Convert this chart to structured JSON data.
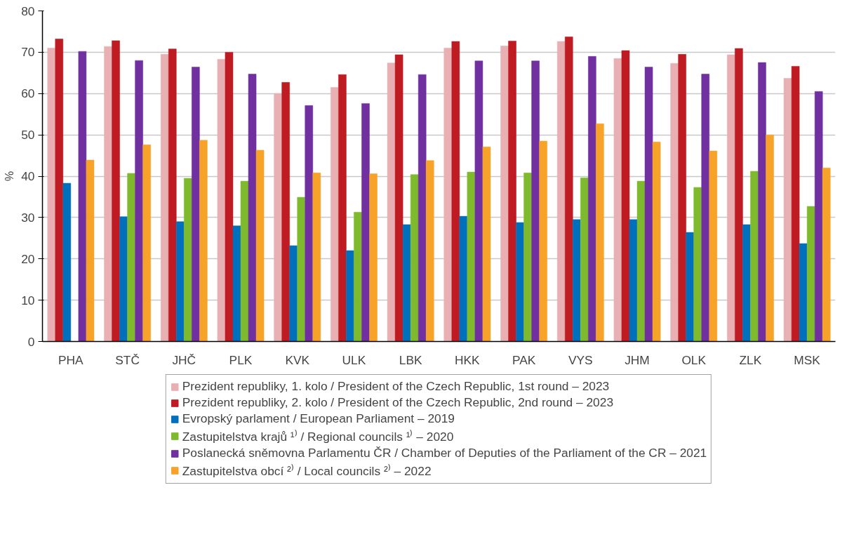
{
  "chart_data": {
    "type": "bar",
    "ylabel": "%",
    "categories": [
      "PHA",
      "STČ",
      "JHČ",
      "PLK",
      "KVK",
      "ULK",
      "LBK",
      "HKK",
      "PAK",
      "VYS",
      "JHM",
      "OLK",
      "ZLK",
      "MSK"
    ],
    "series": [
      {
        "name": "Prezident republiky, 1. kolo / President of the Czech Republic, 1st round – 2023",
        "color": "#e8b0b3",
        "values": [
          71.0,
          71.4,
          69.5,
          68.3,
          60.0,
          61.5,
          67.4,
          71.0,
          71.5,
          72.6,
          68.5,
          67.3,
          69.4,
          63.7
        ]
      },
      {
        "name": "Prezident republiky, 2. kolo / President of the Czech Republic, 2nd round – 2023",
        "color": "#be1b22",
        "values": [
          73.2,
          72.8,
          70.8,
          70.0,
          62.7,
          64.6,
          69.4,
          72.6,
          72.7,
          73.7,
          70.4,
          69.5,
          70.9,
          66.6
        ]
      },
      {
        "name": "Evropský parlament / European Parliament – 2019",
        "color": "#0070bd",
        "values": [
          38.3,
          30.2,
          29.0,
          28.0,
          23.2,
          22.0,
          28.3,
          30.3,
          28.8,
          29.5,
          29.5,
          26.4,
          28.3,
          23.7
        ]
      },
      {
        "name": "Zastupitelstva krajů ¹⁾ / Regional councils ¹⁾ – 2020",
        "color": "#7fba2e",
        "values": [
          null,
          40.7,
          39.5,
          38.8,
          34.9,
          31.3,
          40.4,
          41.0,
          40.8,
          39.6,
          38.8,
          37.3,
          41.2,
          32.7
        ]
      },
      {
        "name": "Poslanecká sněmovna Parlamentu ČR / Chamber of Deputies of the Parliament of the CR – 2021",
        "color": "#7030a0",
        "values": [
          70.2,
          68.0,
          66.4,
          64.7,
          57.1,
          57.6,
          64.6,
          67.9,
          67.9,
          69.0,
          66.4,
          64.7,
          67.5,
          60.5
        ]
      },
      {
        "name": "Zastupitelstva obcí ²⁾ / Local councils ²⁾ – 2022",
        "color": "#f7a229",
        "values": [
          43.9,
          47.6,
          48.7,
          46.3,
          40.8,
          40.6,
          43.8,
          47.1,
          48.5,
          52.7,
          48.3,
          46.1,
          50.0,
          42.0
        ]
      }
    ],
    "ylim": [
      0,
      80
    ],
    "yticks": [
      0,
      10,
      20,
      30,
      40,
      50,
      60,
      70,
      80
    ],
    "grid": "y",
    "legend": "bottom"
  }
}
